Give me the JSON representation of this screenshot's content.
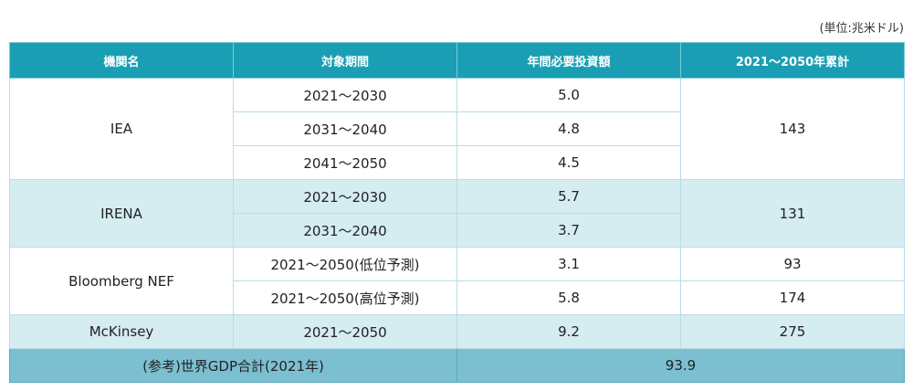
{
  "unit_label": "(単位:兆米ドル)",
  "headers": [
    "機関名",
    "対象期間",
    "年間必要投資額",
    "2021～2050年累計"
  ],
  "iea": {
    "name": "IEA",
    "periods": [
      "2021～2030",
      "2031～2040",
      "2041～2050"
    ],
    "annual": [
      "5.0",
      "4.8",
      "4.5"
    ],
    "total": "143"
  },
  "irena": {
    "name": "IRENA",
    "periods": [
      "2021～2030",
      "2031～2040"
    ],
    "annual": [
      "5.7",
      "3.7"
    ],
    "total": "131"
  },
  "bnef": {
    "name": "Bloomberg NEF",
    "periods": [
      "2021～2050(低位予測)",
      "2021～2050(高位予測)"
    ],
    "annual": [
      "3.1",
      "5.8"
    ],
    "totals": [
      "93",
      "174"
    ]
  },
  "mckinsey": {
    "name": "McKinsey",
    "period": "2021～2050",
    "annual": "9.2",
    "total": "275"
  },
  "footer": {
    "label": "(参考)世界GDP合計(2021年)",
    "value": "93.9"
  }
}
